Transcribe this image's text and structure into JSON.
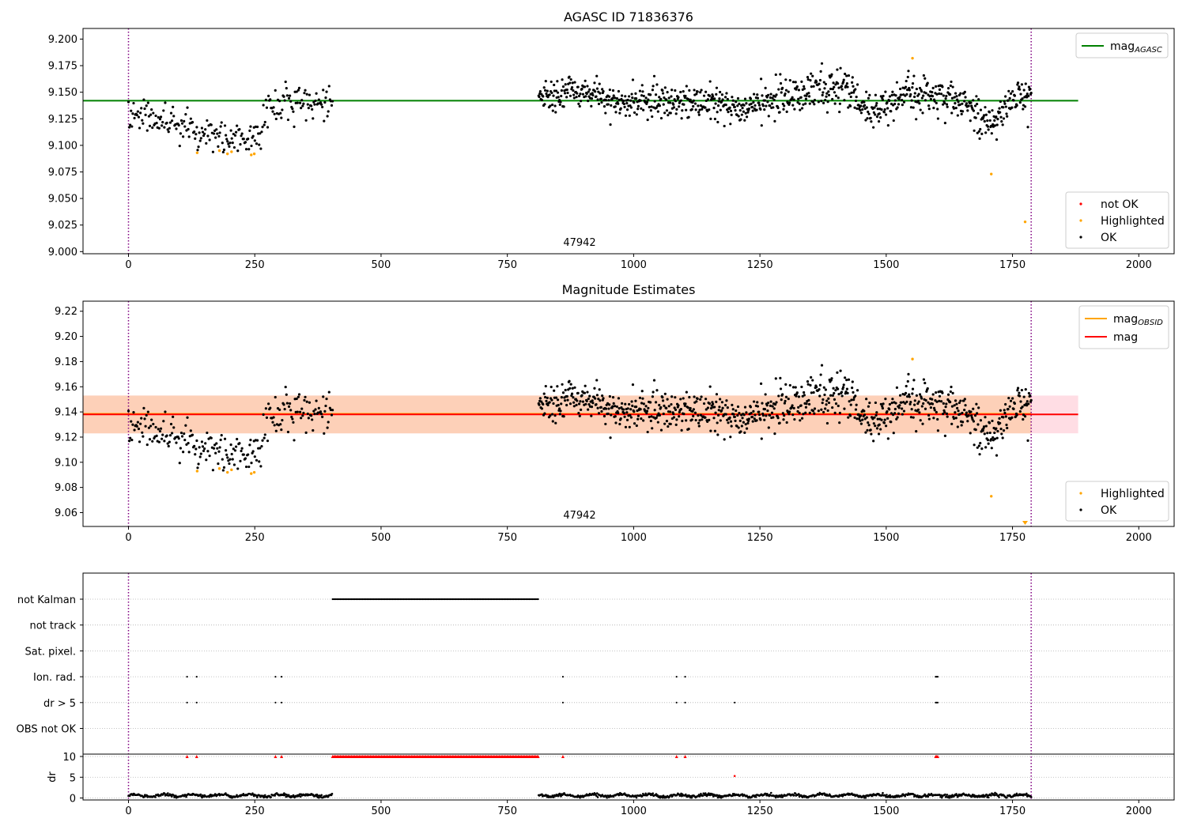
{
  "figure": {
    "title": "AGASC ID 71836376",
    "subtitle": "Magnitude Estimates",
    "obsid_annotation": "47942"
  },
  "colors": {
    "ok": "#000000",
    "highlighted": "#ffa500",
    "not_ok": "#ff0000",
    "mag_agasc": "#008000",
    "mag_obsid": "#ffa500",
    "mag": "#ff0000",
    "band_orange": "#fdd0b8",
    "band_pink": "#ffdde4",
    "obs_line": "#800080",
    "grid": "#b0b0b0"
  },
  "chart_data": [
    {
      "type": "scatter",
      "title": "AGASC ID 71836376",
      "xlim": [
        -90,
        2070
      ],
      "ylim": [
        8.998,
        9.21
      ],
      "xticks": [
        0,
        250,
        500,
        750,
        1000,
        1250,
        1500,
        1750,
        2000
      ],
      "yticks": [
        9.0,
        9.025,
        9.05,
        9.075,
        9.1,
        9.125,
        9.15,
        9.175,
        9.2
      ],
      "ytick_labels": [
        "9.000",
        "9.025",
        "9.050",
        "9.075",
        "9.100",
        "9.125",
        "9.150",
        "9.175",
        "9.200"
      ],
      "obs_boundaries": [
        0,
        1787
      ],
      "annotation": {
        "text": "47942",
        "x": 893
      },
      "hlines": [
        {
          "name": "mag_AGASC",
          "label_main": "mag",
          "label_sub": "AGASC",
          "value": 9.142,
          "x_range": [
            -90,
            1880
          ],
          "color": "#008000"
        }
      ],
      "legend_top": [
        "mag_AGASC"
      ],
      "legend_bottom": [
        "not OK",
        "Highlighted",
        "OK"
      ],
      "series": [
        {
          "name": "OK",
          "segments": [
            {
              "x0": 0,
              "x1": 404,
              "n": 240,
              "anchors": [
                [
                  0,
                  9.127
                ],
                [
                  60,
                  9.123
                ],
                [
                  100,
                  9.118
                ],
                [
                  160,
                  9.11
                ],
                [
                  210,
                  9.106
                ],
                [
                  260,
                  9.11
                ],
                [
                  275,
                  9.135
                ],
                [
                  320,
                  9.138
                ],
                [
                  404,
                  9.14
                ]
              ],
              "spread": 0.011
            },
            {
              "x0": 812,
              "x1": 1787,
              "n": 900,
              "anchors": [
                [
                  812,
                  9.145
                ],
                [
                  880,
                  9.152
                ],
                [
                  950,
                  9.142
                ],
                [
                  1050,
                  9.14
                ],
                [
                  1150,
                  9.14
                ],
                [
                  1230,
                  9.135
                ],
                [
                  1300,
                  9.148
                ],
                [
                  1420,
                  9.152
                ],
                [
                  1470,
                  9.128
                ],
                [
                  1550,
                  9.15
                ],
                [
                  1650,
                  9.14
                ],
                [
                  1710,
                  9.12
                ],
                [
                  1750,
                  9.145
                ],
                [
                  1787,
                  9.142
                ]
              ],
              "spread": 0.011
            }
          ]
        },
        {
          "name": "Highlighted",
          "points": [
            [
              136,
              9.093
            ],
            [
              180,
              9.095
            ],
            [
              196,
              9.092
            ],
            [
              204,
              9.094
            ],
            [
              243,
              9.091
            ],
            [
              249,
              9.092
            ],
            [
              1552,
              9.182
            ],
            [
              1708,
              9.073
            ],
            [
              1775,
              9.028
            ]
          ]
        },
        {
          "name": "not OK",
          "points": []
        }
      ]
    },
    {
      "type": "scatter",
      "title": "Magnitude Estimates",
      "xlim": [
        -90,
        2070
      ],
      "ylim": [
        9.049,
        9.228
      ],
      "xticks": [
        0,
        250,
        500,
        750,
        1000,
        1250,
        1500,
        1750,
        2000
      ],
      "yticks": [
        9.06,
        9.08,
        9.1,
        9.12,
        9.14,
        9.16,
        9.18,
        9.2,
        9.22
      ],
      "ytick_labels": [
        "9.06",
        "9.08",
        "9.10",
        "9.12",
        "9.14",
        "9.16",
        "9.18",
        "9.20",
        "9.22"
      ],
      "obs_boundaries": [
        0,
        1787
      ],
      "annotation": {
        "text": "47942",
        "x": 893
      },
      "bands": [
        {
          "y0": 9.123,
          "y1": 9.153,
          "x_range": [
            -90,
            1880
          ],
          "color": "#ffdde4"
        },
        {
          "y0": 9.123,
          "y1": 9.153,
          "x_range": [
            -90,
            1787
          ],
          "color": "#fdd0b8"
        }
      ],
      "hlines": [
        {
          "name": "mag_OBSID",
          "label_main": "mag",
          "label_sub": "OBSID",
          "value": 9.1385,
          "x_range": [
            -90,
            1787
          ],
          "color": "#ffa500"
        },
        {
          "name": "mag",
          "label_main": "mag",
          "label_sub": "",
          "value": 9.138,
          "x_range": [
            -90,
            1880
          ],
          "color": "#ff0000"
        }
      ],
      "legend_top": [
        "mag_OBSID",
        "mag"
      ],
      "legend_bottom": [
        "Highlighted",
        "OK"
      ],
      "series": [
        {
          "name": "OK",
          "same_as_panel": 0
        },
        {
          "name": "Highlighted",
          "points": [
            [
              136,
              9.093
            ],
            [
              180,
              9.095
            ],
            [
              196,
              9.092
            ],
            [
              204,
              9.094
            ],
            [
              243,
              9.091
            ],
            [
              249,
              9.092
            ],
            [
              1552,
              9.182
            ],
            [
              1708,
              9.073
            ]
          ]
        },
        {
          "name": "Highlighted (below axis)",
          "points": [
            [
              1775,
              9.051
            ]
          ],
          "marker": "triangle-down"
        }
      ]
    },
    {
      "type": "scatter",
      "title": "",
      "xlim": [
        -90,
        2070
      ],
      "xticks": [
        0,
        250,
        500,
        750,
        1000,
        1250,
        1500,
        1750,
        2000
      ],
      "obs_boundaries": [
        0,
        1787
      ],
      "flag_rows": [
        "not Kalman",
        "not track",
        "Sat. pixel.",
        "Ion. rad.",
        "dr > 5",
        "OBS not OK"
      ],
      "flags": {
        "not Kalman": {
          "ranges": [
            [
              404,
              812
            ]
          ]
        },
        "not track": {
          "points": []
        },
        "Sat. pixel.": {
          "points": []
        },
        "Ion. rad.": {
          "points": [
            116,
            135,
            291,
            303,
            860,
            1085,
            1102,
            1598,
            1600,
            1602
          ]
        },
        "dr > 5": {
          "points": [
            116,
            135,
            291,
            303,
            860,
            1085,
            1102,
            1200,
            1598,
            1600,
            1602
          ]
        },
        "OBS not OK": {
          "points": []
        }
      },
      "dr": {
        "ylabel": "dr",
        "ylim": [
          -0.5,
          11
        ],
        "yticks": [
          0,
          5,
          10
        ],
        "clip_value": 10,
        "segments": [
          [
            0,
            404
          ],
          [
            812,
            1787
          ]
        ],
        "baseline_mean": 0.6,
        "clipped_points": [
          116,
          135,
          291,
          303,
          860,
          1085,
          1102,
          1598,
          1600,
          1602
        ],
        "clipped_range": [
          404,
          812
        ],
        "mid_points": [
          [
            1200,
            5.3
          ]
        ]
      }
    }
  ]
}
